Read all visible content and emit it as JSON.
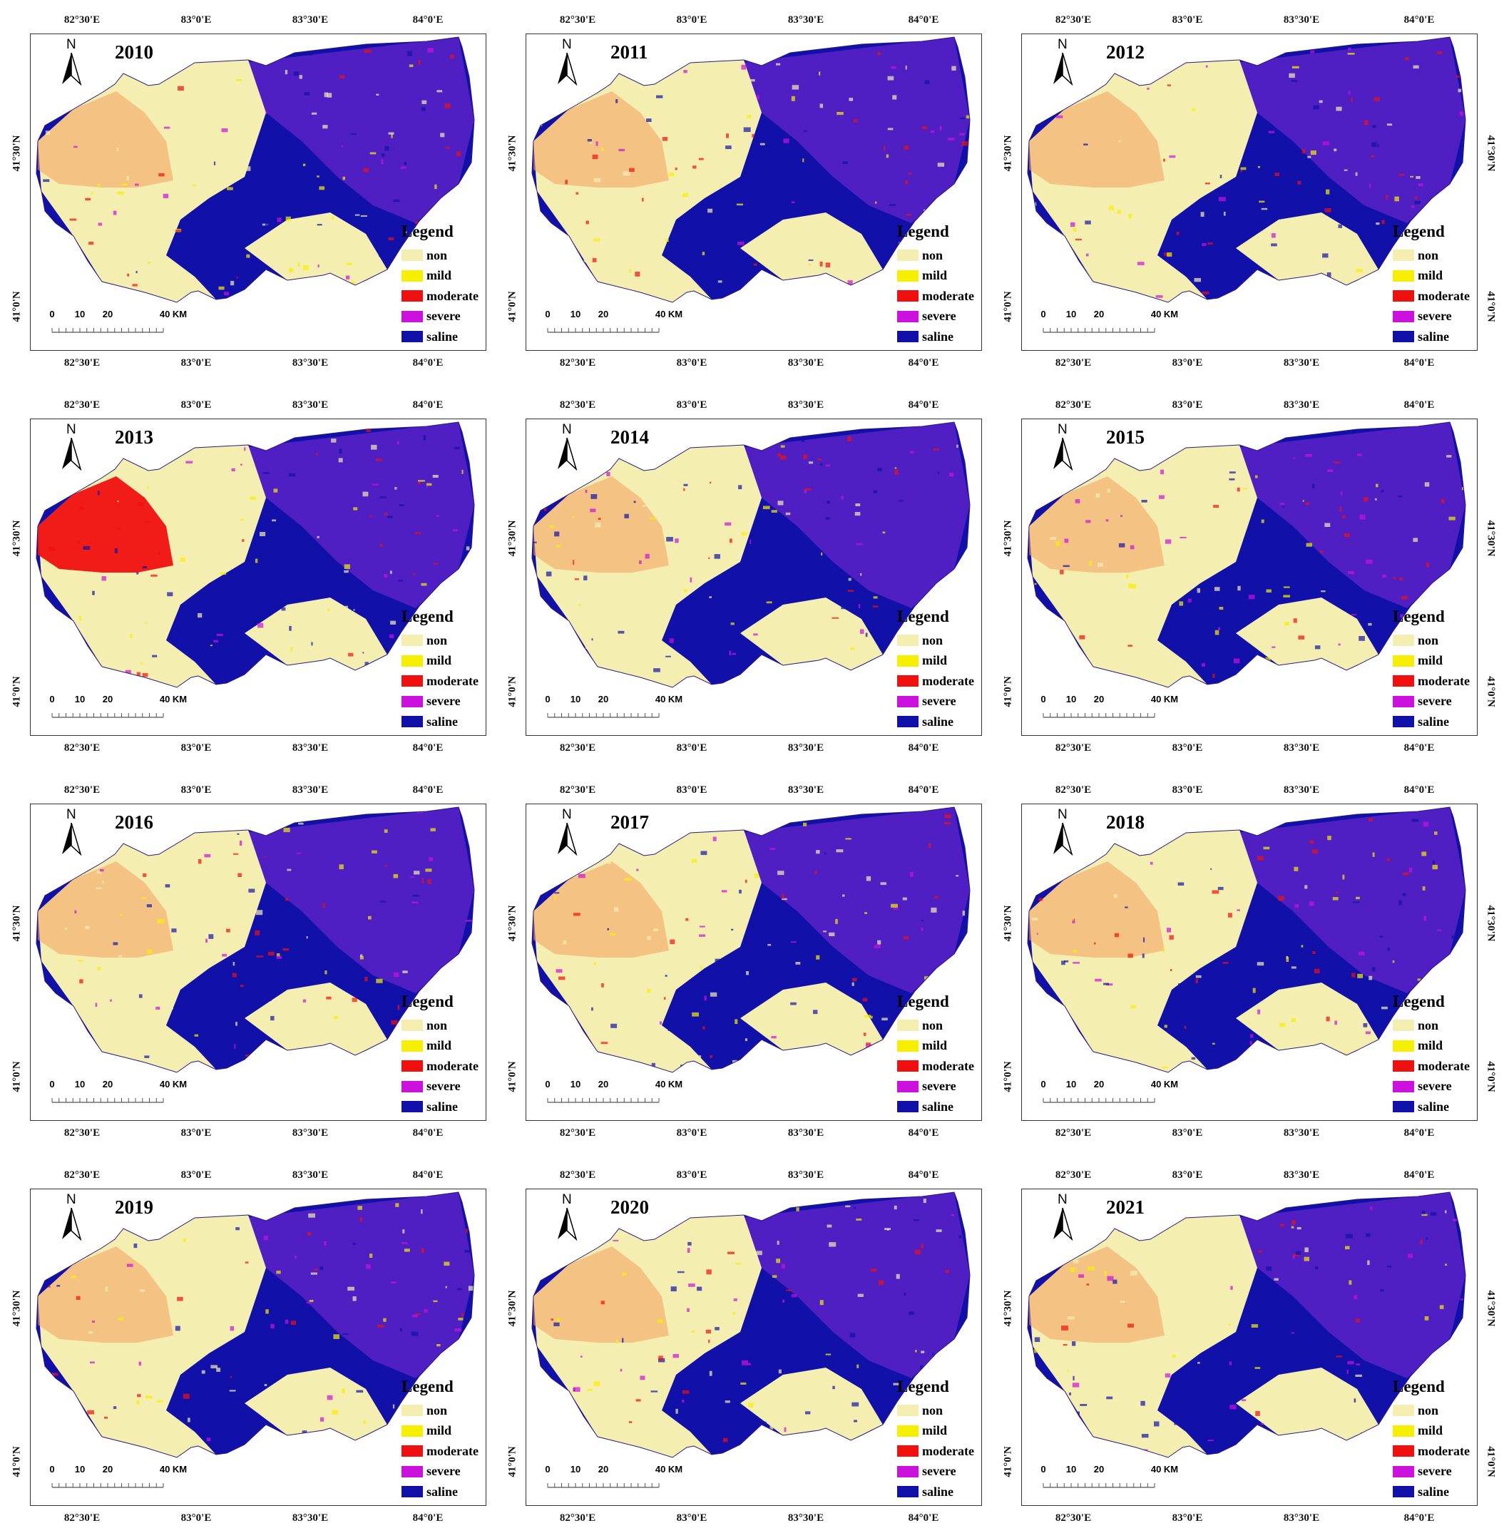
{
  "figure": {
    "lon_labels": [
      "82°30'E",
      "83°0'E",
      "83°30'E",
      "84°0'E"
    ],
    "lat_labels": [
      "41°30'N",
      "41°0'N"
    ],
    "north_label": "N",
    "scale": {
      "labels": [
        "0",
        "10",
        "20",
        "40 KM"
      ],
      "distances_km": [
        0,
        10,
        20,
        40
      ]
    },
    "legend": {
      "title": "Legend",
      "classes": [
        {
          "label": "non",
          "color": "#f4eeb0"
        },
        {
          "label": "mild",
          "color": "#f6f000"
        },
        {
          "label": "moderate",
          "color": "#f01010"
        },
        {
          "label": "severe",
          "color": "#cc10dd"
        },
        {
          "label": "saline",
          "color": "#1111aa"
        }
      ]
    },
    "panels": [
      {
        "year": "2010",
        "show_left_lat": true,
        "show_right_lat": false
      },
      {
        "year": "2011",
        "show_left_lat": true,
        "show_right_lat": false
      },
      {
        "year": "2012",
        "show_left_lat": true,
        "show_right_lat": true
      },
      {
        "year": "2013",
        "show_left_lat": true,
        "show_right_lat": false
      },
      {
        "year": "2014",
        "show_left_lat": true,
        "show_right_lat": false
      },
      {
        "year": "2015",
        "show_left_lat": true,
        "show_right_lat": true
      },
      {
        "year": "2016",
        "show_left_lat": true,
        "show_right_lat": false
      },
      {
        "year": "2017",
        "show_left_lat": true,
        "show_right_lat": false
      },
      {
        "year": "2018",
        "show_left_lat": true,
        "show_right_lat": true
      },
      {
        "year": "2019",
        "show_left_lat": true,
        "show_right_lat": false
      },
      {
        "year": "2020",
        "show_left_lat": true,
        "show_right_lat": false
      },
      {
        "year": "2021",
        "show_left_lat": true,
        "show_right_lat": true
      }
    ]
  }
}
